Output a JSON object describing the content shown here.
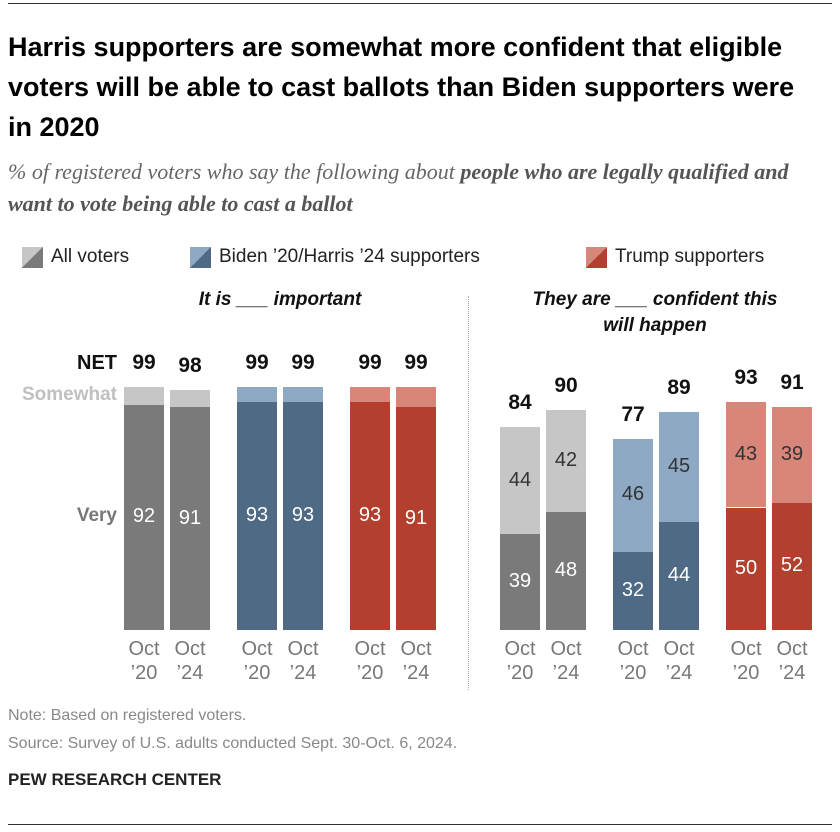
{
  "title": "Harris supporters are somewhat more confident that eligible voters will be able to cast ballots than Biden supporters were in 2020",
  "subtitle": [
    "% of registered voters who say the following about",
    "people who are legally qualified and want to vote being able to cast a ballot"
  ],
  "notes": [
    "Note: Based on registered voters.",
    "Source: Survey of U.S. adults conducted Sept. 30-Oct. 6, 2024."
  ],
  "footer": "PEW RESEARCH CENTER",
  "chart_data": {
    "type": "stacked_bar",
    "categories": [
      "Oct ’20",
      "Oct ’24"
    ],
    "ylim": [
      0,
      100
    ],
    "series": [
      {
        "name": "All voters",
        "colors": [
          "#7a7a7a",
          "#c6c6c6"
        ]
      },
      {
        "name": "Biden ’20/Harris ’24 supporters",
        "colors": [
          "#4e6a84",
          "#8ea9c3"
        ]
      },
      {
        "name": "Trump supporters",
        "colors": [
          "#b3402e",
          "#d9867a"
        ]
      }
    ],
    "panels": [
      {
        "title": "It is ___ important",
        "total_label": "NET",
        "segment_names": [
          "Very",
          "Somewhat"
        ],
        "show_segment_labels": [
          true,
          false
        ],
        "data": [
          {
            "segments": [
              [
                92,
                91
              ],
              [
                7,
                7
              ]
            ],
            "totals": [
              99,
              98
            ]
          },
          {
            "segments": [
              [
                93,
                93
              ],
              [
                6,
                6
              ]
            ],
            "totals": [
              99,
              99
            ]
          },
          {
            "segments": [
              [
                93,
                91
              ],
              [
                6,
                8
              ]
            ],
            "totals": [
              99,
              99
            ]
          }
        ]
      },
      {
        "title": "They are ___ confident this will happen",
        "show_segment_labels": [
          true,
          true
        ],
        "data": [
          {
            "segments": [
              [
                39,
                48
              ],
              [
                44,
                42
              ]
            ],
            "totals": [
              84,
              90
            ]
          },
          {
            "segments": [
              [
                32,
                44
              ],
              [
                46,
                45
              ]
            ],
            "totals": [
              77,
              89
            ]
          },
          {
            "segments": [
              [
                50,
                52
              ],
              [
                43,
                39
              ]
            ],
            "totals": [
              93,
              91
            ]
          }
        ]
      }
    ]
  }
}
